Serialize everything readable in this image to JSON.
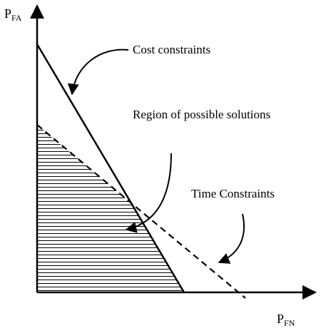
{
  "axes": {
    "y_label": {
      "main": "P",
      "sub": "FA"
    },
    "x_label": {
      "main": "P",
      "sub": "FN"
    }
  },
  "annotations": {
    "cost": "Cost constraints",
    "region": "Region of possible solutions",
    "time": "Time Constraints"
  }
}
